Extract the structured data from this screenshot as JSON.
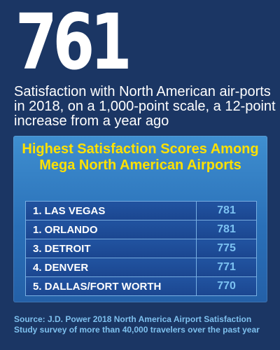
{
  "headline": {
    "number": "761",
    "text": "Satisfaction with North American air-ports in 2018, on a 1,000-point scale, a 12-point increase from a year ago"
  },
  "panel": {
    "title": "Highest Satisfaction Scores Among Mega North American Airports"
  },
  "colors": {
    "background": "#1b3664",
    "panel": "#2f7ac4",
    "title": "#ffe100",
    "score": "#7cc2f2",
    "source": "#7ec0ee"
  },
  "chart_data": {
    "type": "table",
    "title": "Highest Satisfaction Scores Among Mega North American Airports",
    "rows": [
      {
        "label": "1. LAS VEGAS",
        "value": "781"
      },
      {
        "label": "1. ORLANDO",
        "value": "781"
      },
      {
        "label": "3. DETROIT",
        "value": "775"
      },
      {
        "label": "4. DENVER",
        "value": "771"
      },
      {
        "label": "5. DALLAS/FORT WORTH",
        "value": "770"
      }
    ]
  },
  "source": "Source: J.D. Power 2018 North America Airport Satisfaction Study survey of more than 40,000 travelers over the past year"
}
